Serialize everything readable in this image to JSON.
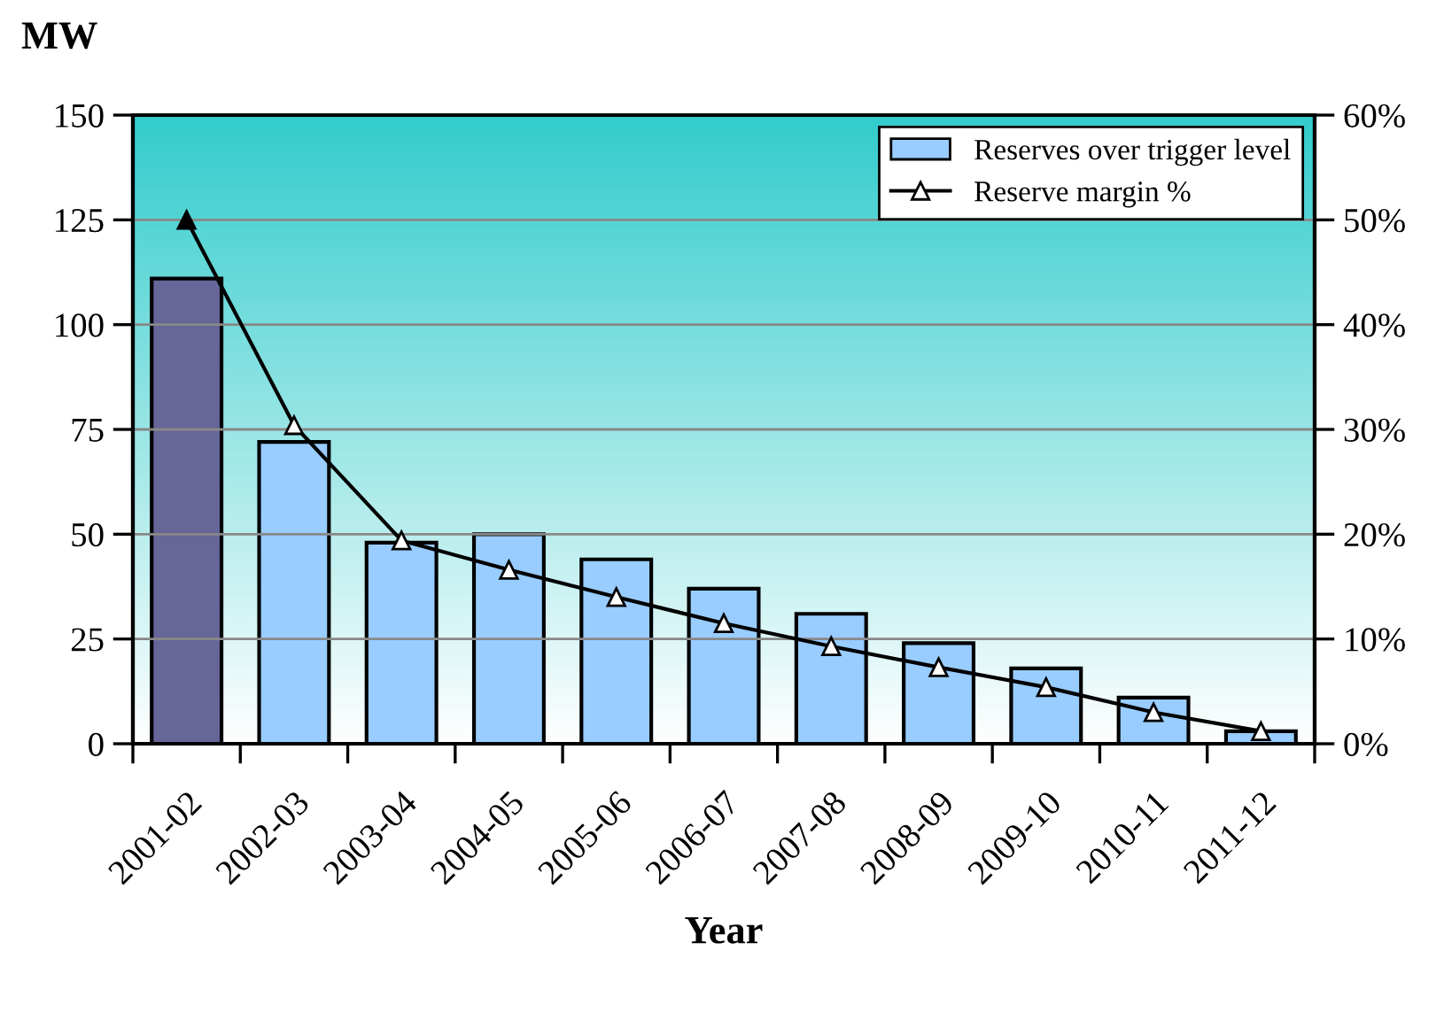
{
  "chart_data": {
    "type": "bar",
    "xlabel": "Year",
    "ylabel": "MW",
    "categories": [
      "2001-02",
      "2002-03",
      "2003-04",
      "2004-05",
      "2005-06",
      "2006-07",
      "2007-08",
      "2008-09",
      "2009-10",
      "2010-11",
      "2011-12"
    ],
    "series": [
      {
        "name": "Reserves over trigger level",
        "color": "#99ccff",
        "colors": [
          "#666699",
          "#99ccff",
          "#99ccff",
          "#99ccff",
          "#99ccff",
          "#99ccff",
          "#99ccff",
          "#99ccff",
          "#99ccff",
          "#99ccff",
          "#99ccff"
        ],
        "values": [
          111,
          72,
          48,
          50,
          44,
          37,
          31,
          24,
          18,
          11,
          3
        ]
      },
      {
        "name": "Reserve margin %",
        "type": "line",
        "axis": "y2",
        "color": "#000000",
        "marker": "triangle",
        "values": [
          50,
          30.4,
          19.4,
          16.6,
          14,
          11.5,
          9.3,
          7.3,
          5.4,
          3,
          1.2
        ]
      }
    ],
    "ylim": [
      0,
      150
    ],
    "yticks": [
      0,
      25,
      50,
      75,
      100,
      125,
      150
    ],
    "y2lim": [
      0,
      60
    ],
    "y2ticks": [
      {
        "value": 0,
        "label": "0%"
      },
      {
        "value": 10,
        "label": "10%"
      },
      {
        "value": 20,
        "label": "20%"
      },
      {
        "value": 30,
        "label": "30%"
      },
      {
        "value": 40,
        "label": "40%"
      },
      {
        "value": 50,
        "label": "50%"
      },
      {
        "value": 60,
        "label": "60%"
      }
    ],
    "grid": "y",
    "legend": "top right"
  }
}
